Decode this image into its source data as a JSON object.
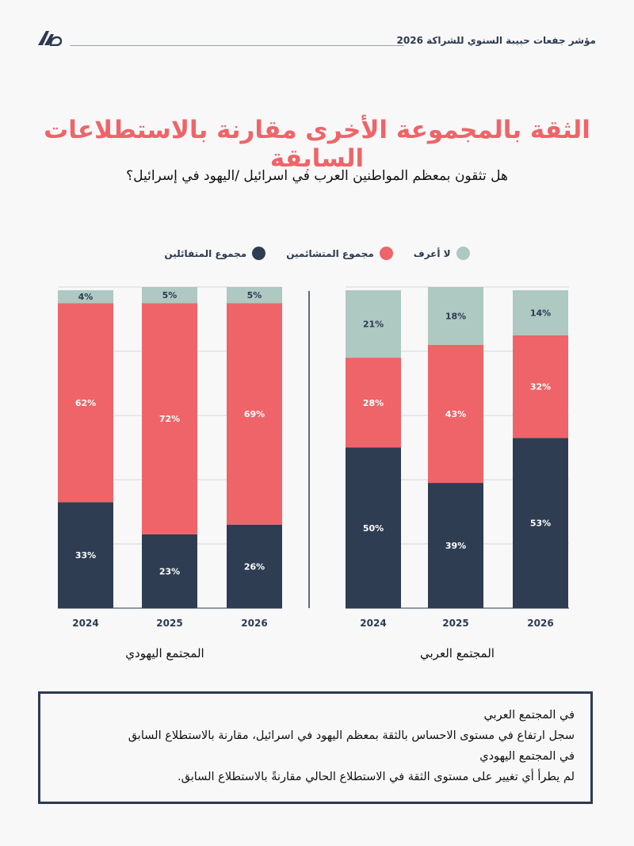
{
  "header": {
    "title": "مؤشر جفعات حبيبة السنوي للشراكة 2026",
    "logo": "givat-haviva-logo"
  },
  "title": "الثقة بالمجموعة الأخرى مقارنة بالاستطلاعات السابقة",
  "subtitle": "هل تثقون بمعظم المواطنين العرب في اسرائيل /اليهود في إسرائيل؟",
  "colors": {
    "optimists": "#2e3d52",
    "pessimists": "#ef6468",
    "dont_know": "#aec8c2",
    "accent": "#ef6468"
  },
  "chart_data": [
    {
      "type": "bar",
      "stacked": true,
      "title": "المجتمع اليهودي",
      "categories": [
        "2024",
        "2025",
        "2026"
      ],
      "series": [
        {
          "name": "مجموع المتفائلين",
          "values": [
            33,
            23,
            26
          ]
        },
        {
          "name": "مجموع المتشائمين",
          "values": [
            62,
            72,
            69
          ]
        },
        {
          "name": "لا أعرف",
          "values": [
            4,
            5,
            5
          ]
        }
      ],
      "labels": [
        [
          "33%",
          "23%",
          "26%"
        ],
        [
          "62%",
          "72%",
          "69%"
        ],
        [
          "4%",
          "5%",
          "5%"
        ]
      ],
      "ylim": [
        0,
        100
      ],
      "grid": true
    },
    {
      "type": "bar",
      "stacked": true,
      "title": "المجتمع العربي",
      "categories": [
        "2024",
        "2025",
        "2026"
      ],
      "series": [
        {
          "name": "مجموع المتفائلين",
          "values": [
            50,
            39,
            53
          ]
        },
        {
          "name": "مجموع المتشائمين",
          "values": [
            28,
            43,
            32
          ]
        },
        {
          "name": "لا أعرف",
          "values": [
            21,
            18,
            14
          ]
        }
      ],
      "labels": [
        [
          "50%",
          "39%",
          "53%"
        ],
        [
          "28%",
          "43%",
          "32%"
        ],
        [
          "21%",
          "18%",
          "14%"
        ]
      ],
      "ylim": [
        0,
        100
      ],
      "grid": true
    }
  ],
  "legend": [
    {
      "label": "لا أعرف",
      "color": "#aec8c2"
    },
    {
      "label": "مجموع المتشائمين",
      "color": "#ef6468"
    },
    {
      "label": "مجموع المتفائلين",
      "color": "#2e3d52"
    }
  ],
  "summary": {
    "line1": "في المجتمع العربي",
    "line2": "سجل ارتفاع في مستوى الاحساس بالثقة بمعظم اليهود في اسرائيل، مقارنة بالاستطلاع السابق",
    "line3": "في المجتمع اليهودي",
    "line4": "لم يطرأ أي تغيير على مستوى الثقة في الاستطلاع الحالي مقارنةً بالاستطلاع السابق."
  }
}
